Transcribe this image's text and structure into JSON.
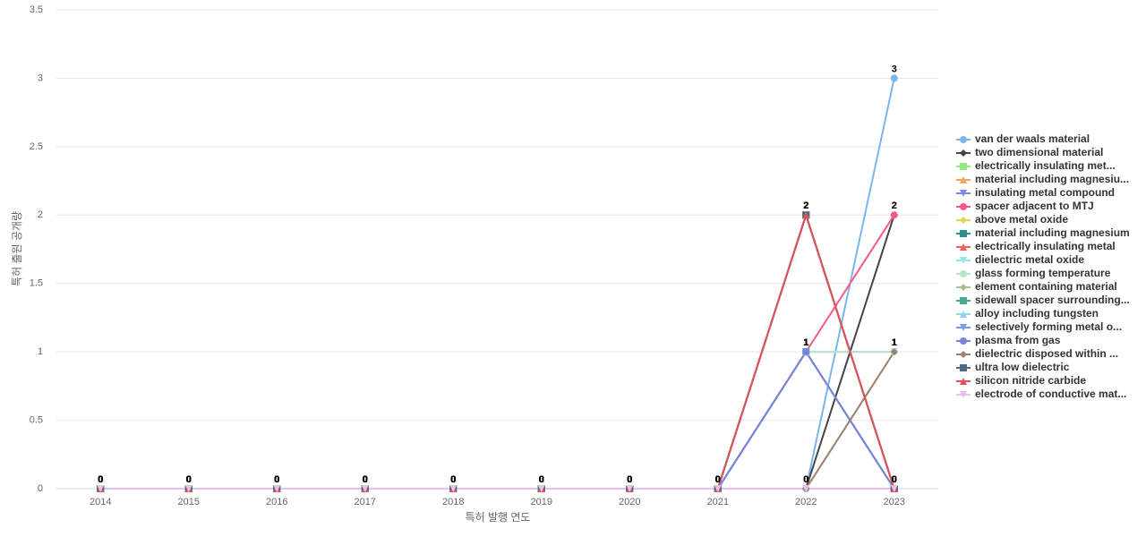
{
  "chart_data": {
    "type": "line",
    "x_label": "특허 발행 연도",
    "y_label": "특허 출원 공개량",
    "categories": [
      "2014",
      "2015",
      "2016",
      "2017",
      "2018",
      "2019",
      "2020",
      "2021",
      "2022",
      "2023"
    ],
    "ylim": [
      0,
      3.5
    ],
    "yticks": [
      0,
      0.5,
      1,
      1.5,
      2,
      2.5,
      3,
      3.5
    ],
    "grid": true,
    "series": [
      {
        "name": "van der waals material",
        "color": "#7cb5ec",
        "marker": "circle",
        "values": [
          0,
          0,
          0,
          0,
          0,
          0,
          0,
          0,
          0,
          3
        ]
      },
      {
        "name": "two dimensional material",
        "color": "#434348",
        "marker": "diamond",
        "values": [
          0,
          0,
          0,
          0,
          0,
          0,
          0,
          0,
          0,
          2
        ]
      },
      {
        "name": "electrically insulating met...",
        "color": "#90ed7d",
        "marker": "square",
        "values": [
          0,
          0,
          0,
          0,
          0,
          0,
          0,
          0,
          2,
          0
        ]
      },
      {
        "name": "material including magnesiu...",
        "color": "#f7a35c",
        "marker": "triangle",
        "values": [
          0,
          0,
          0,
          0,
          0,
          0,
          0,
          0,
          2,
          0
        ]
      },
      {
        "name": "insulating metal compound",
        "color": "#8085e9",
        "marker": "triangle-down",
        "values": [
          0,
          0,
          0,
          0,
          0,
          0,
          0,
          0,
          1,
          0
        ]
      },
      {
        "name": "spacer adjacent to MTJ",
        "color": "#f15c80",
        "marker": "circle",
        "values": [
          0,
          0,
          0,
          0,
          0,
          0,
          0,
          0,
          1,
          2
        ]
      },
      {
        "name": "above metal oxide",
        "color": "#e4d354",
        "marker": "diamond",
        "values": [
          0,
          0,
          0,
          0,
          0,
          0,
          0,
          0,
          1,
          1
        ]
      },
      {
        "name": "material including magnesium",
        "color": "#2b908f",
        "marker": "square",
        "values": [
          0,
          0,
          0,
          0,
          0,
          0,
          0,
          0,
          2,
          0
        ]
      },
      {
        "name": "electrically insulating metal",
        "color": "#f45b5b",
        "marker": "triangle",
        "values": [
          0,
          0,
          0,
          0,
          0,
          0,
          0,
          0,
          2,
          0
        ]
      },
      {
        "name": "dielectric metal oxide",
        "color": "#91e8e1",
        "marker": "triangle-down",
        "values": [
          0,
          0,
          0,
          0,
          0,
          0,
          0,
          0,
          1,
          1
        ]
      },
      {
        "name": "glass forming temperature",
        "color": "#b5e5c9",
        "marker": "circle",
        "values": [
          0,
          0,
          0,
          0,
          0,
          0,
          0,
          0,
          1,
          1
        ]
      },
      {
        "name": "element containing material",
        "color": "#a5c08f",
        "marker": "diamond",
        "values": [
          0,
          0,
          0,
          0,
          0,
          0,
          0,
          0,
          0,
          1
        ]
      },
      {
        "name": "sidewall spacer surrounding...",
        "color": "#4daa8f",
        "marker": "square",
        "values": [
          0,
          0,
          0,
          0,
          0,
          0,
          0,
          0,
          1,
          0
        ]
      },
      {
        "name": "alloy including tungsten",
        "color": "#8fd3ec",
        "marker": "triangle",
        "values": [
          0,
          0,
          0,
          0,
          0,
          0,
          0,
          0,
          1,
          0
        ]
      },
      {
        "name": "selectively forming metal o...",
        "color": "#6f9fe0",
        "marker": "triangle-down",
        "values": [
          0,
          0,
          0,
          0,
          0,
          0,
          0,
          0,
          1,
          0
        ]
      },
      {
        "name": "plasma from gas",
        "color": "#7b83d8",
        "marker": "circle",
        "values": [
          0,
          0,
          0,
          0,
          0,
          0,
          0,
          0,
          1,
          0
        ]
      },
      {
        "name": "dielectric disposed within ...",
        "color": "#a08070",
        "marker": "diamond",
        "values": [
          0,
          0,
          0,
          0,
          0,
          0,
          0,
          0,
          0,
          1
        ]
      },
      {
        "name": "ultra low dielectric",
        "color": "#4a6b85",
        "marker": "square",
        "values": [
          0,
          0,
          0,
          0,
          0,
          0,
          0,
          0,
          2,
          0
        ]
      },
      {
        "name": "silicon nitride carbide",
        "color": "#e0525a",
        "marker": "triangle",
        "values": [
          0,
          0,
          0,
          0,
          0,
          0,
          0,
          0,
          2,
          0
        ]
      },
      {
        "name": "electrode of conductive mat...",
        "color": "#e8c0e8",
        "marker": "triangle-down",
        "values": [
          0,
          0,
          0,
          0,
          0,
          0,
          0,
          0,
          0,
          0
        ]
      }
    ]
  }
}
